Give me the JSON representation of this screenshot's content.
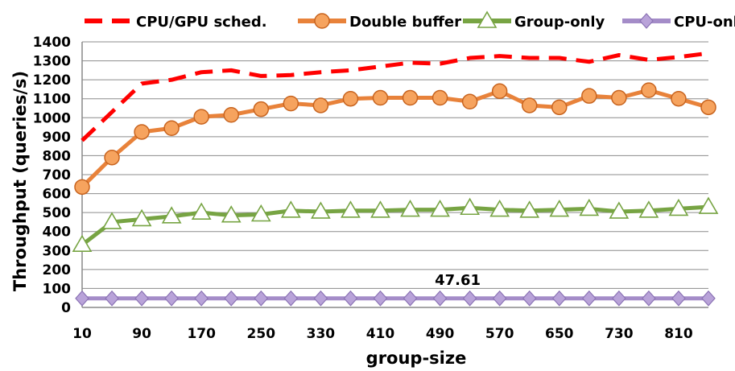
{
  "chart_data": {
    "type": "line",
    "title": "",
    "xlabel": "group-size",
    "ylabel": "Throughput (queries/s)",
    "ylim": [
      0,
      1400
    ],
    "y_ticks": [
      0,
      100,
      200,
      300,
      400,
      500,
      600,
      700,
      800,
      900,
      1000,
      1100,
      1200,
      1300,
      1400
    ],
    "x_tick_labels": [
      "10",
      "90",
      "170",
      "250",
      "330",
      "410",
      "490",
      "570",
      "650",
      "730",
      "810"
    ],
    "x": [
      10,
      50,
      90,
      130,
      170,
      210,
      250,
      290,
      330,
      370,
      410,
      450,
      490,
      530,
      570,
      610,
      650,
      690,
      730,
      770,
      810,
      850
    ],
    "grid": true,
    "legend_position": "top",
    "series": [
      {
        "name": "CPU/GPU sched.",
        "color": "#ff0000",
        "style": "dashed",
        "marker": "none",
        "values": [
          880,
          1030,
          1180,
          1200,
          1240,
          1250,
          1220,
          1225,
          1240,
          1250,
          1270,
          1290,
          1285,
          1315,
          1325,
          1315,
          1315,
          1295,
          1330,
          1305,
          1320,
          1340
        ]
      },
      {
        "name": "Double buffer",
        "color": "#e8823a",
        "style": "solid",
        "marker": "circle",
        "values": [
          635,
          790,
          925,
          945,
          1005,
          1015,
          1045,
          1075,
          1065,
          1100,
          1105,
          1105,
          1105,
          1085,
          1140,
          1065,
          1055,
          1115,
          1105,
          1145,
          1100,
          1055
        ]
      },
      {
        "name": "Group-only",
        "color": "#77a443",
        "style": "solid",
        "marker": "triangle",
        "values": [
          330,
          450,
          465,
          480,
          500,
          485,
          490,
          510,
          505,
          510,
          510,
          515,
          515,
          525,
          515,
          510,
          515,
          520,
          505,
          510,
          520,
          530
        ]
      },
      {
        "name": "CPU-only",
        "color": "#a48cc8",
        "style": "solid",
        "marker": "diamond",
        "values": [
          47.61,
          47.61,
          47.61,
          47.61,
          47.61,
          47.61,
          47.61,
          47.61,
          47.61,
          47.61,
          47.61,
          47.61,
          47.61,
          47.61,
          47.61,
          47.61,
          47.61,
          47.61,
          47.61,
          47.61,
          47.61,
          47.61
        ]
      }
    ],
    "annotations": [
      {
        "text": "47.61",
        "x": 490,
        "y": 145
      }
    ]
  }
}
